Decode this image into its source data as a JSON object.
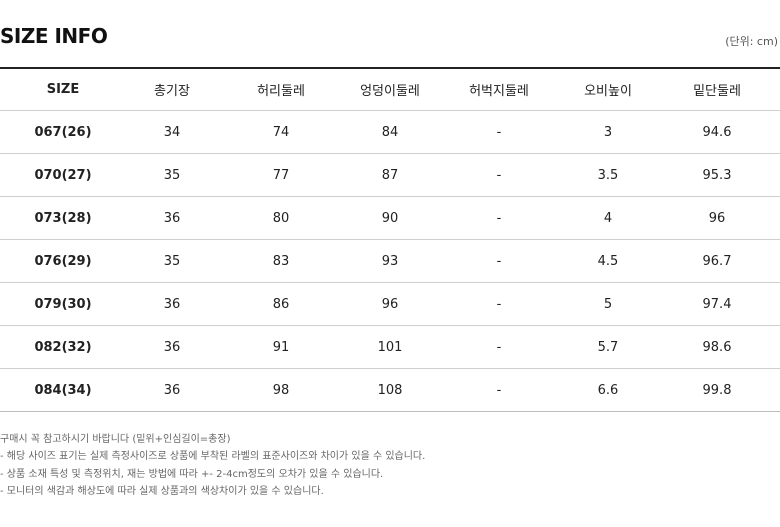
{
  "header": {
    "title": "SIZE INFO",
    "unit": "(단위: cm)"
  },
  "table": {
    "columns": [
      "SIZE",
      "총기장",
      "허리둘레",
      "엉덩이둘레",
      "허벅지둘레",
      "오비높이",
      "밑단둘레"
    ],
    "rows": [
      [
        "067(26)",
        "34",
        "74",
        "84",
        "-",
        "3",
        "94.6"
      ],
      [
        "070(27)",
        "35",
        "77",
        "87",
        "-",
        "3.5",
        "95.3"
      ],
      [
        "073(28)",
        "36",
        "80",
        "90",
        "-",
        "4",
        "96"
      ],
      [
        "076(29)",
        "35",
        "83",
        "93",
        "-",
        "4.5",
        "96.7"
      ],
      [
        "079(30)",
        "36",
        "86",
        "96",
        "-",
        "5",
        "97.4"
      ],
      [
        "082(32)",
        "36",
        "91",
        "101",
        "-",
        "5.7",
        "98.6"
      ],
      [
        "084(34)",
        "36",
        "98",
        "108",
        "-",
        "6.6",
        "99.8"
      ]
    ]
  },
  "notes": [
    "구매시 꼭 참고하시기 바랍니다 (밑위+인심길이=총장)",
    "- 해당 사이즈 표기는 실제 측정사이즈로 상품에 부착된 라벨의 표준사이즈와 차이가 있을 수 있습니다.",
    "- 상품 소재 특성 및 측정위치, 재는 방법에 따라 +- 2-4cm정도의 오차가 있을 수 있습니다.",
    "- 모니터의 색감과 해상도에 따라 실제 상품과의 색상차이가 있을 수 있습니다."
  ]
}
